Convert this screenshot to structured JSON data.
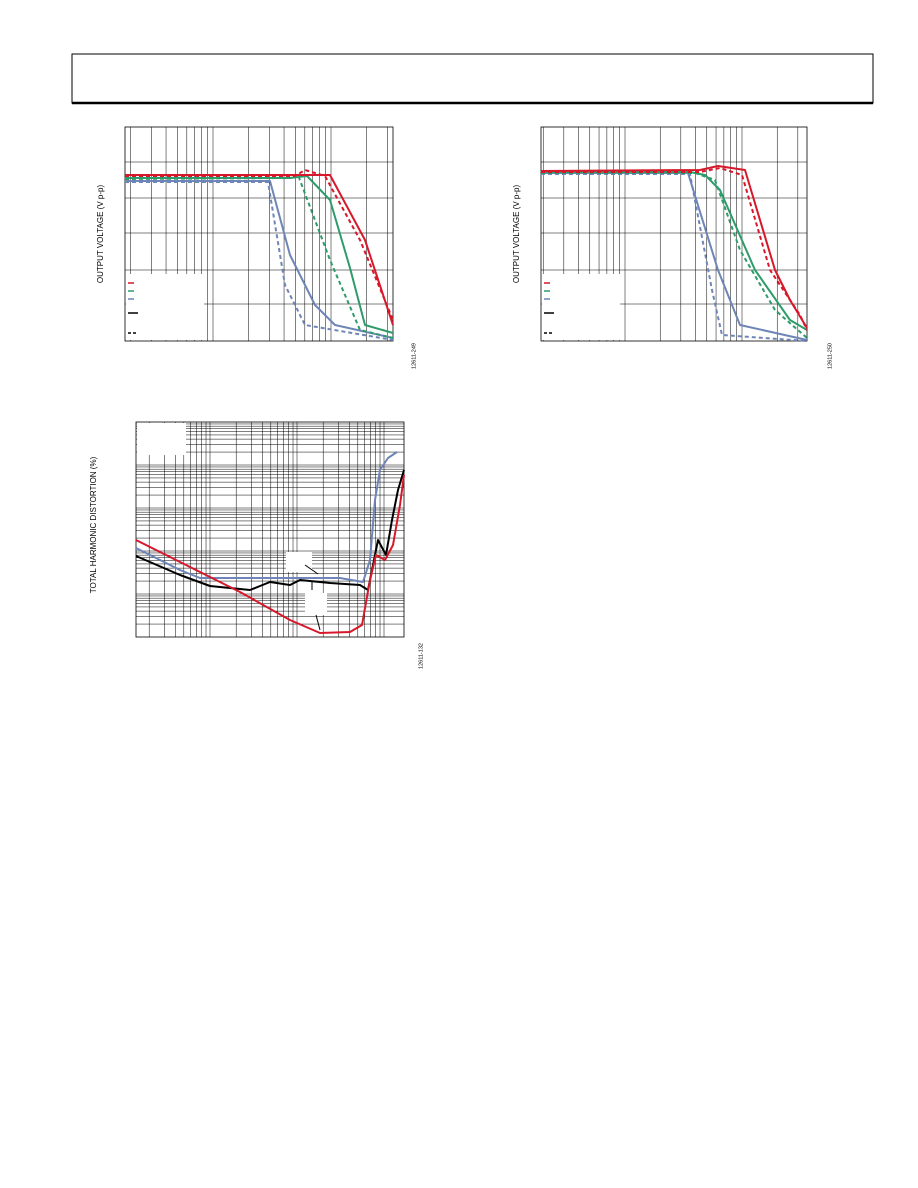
{
  "figures": [
    {
      "y_label": "OUTPUT VOLTAGE (V p-p)",
      "figure_id": "12611-249"
    },
    {
      "y_label": "OUTPUT VOLTAGE (V p-p)",
      "figure_id": "12611-250"
    },
    {
      "y_label": "TOTAL HARMONIC DISTORTION (%)",
      "figure_id": "12611-132"
    }
  ]
}
